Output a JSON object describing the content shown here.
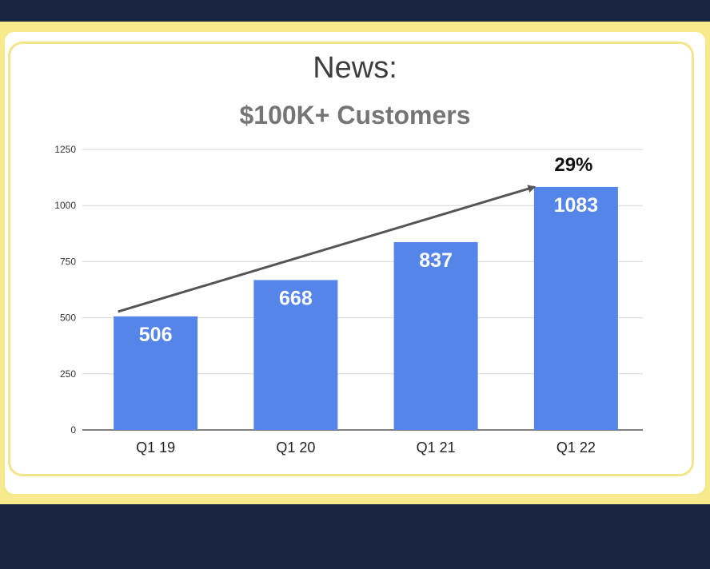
{
  "header": {
    "news_label": "News:"
  },
  "chart_data": {
    "type": "bar",
    "title": "$100K+ Customers",
    "categories": [
      "Q1 19",
      "Q1 20",
      "Q1 21",
      "Q1 22"
    ],
    "values": [
      506,
      668,
      837,
      1083
    ],
    "data_labels": [
      "506",
      "668",
      "837",
      "1083"
    ],
    "yticks": [
      0,
      250,
      500,
      750,
      1000,
      1250
    ],
    "ylim": [
      0,
      1250
    ],
    "grid": true,
    "annotation": {
      "text": "29%",
      "arrow_from": "Q1 19",
      "arrow_to": "Q1 22"
    },
    "colors": {
      "bar": "#5585e8",
      "grid": "#d6d6d6",
      "axis": "#555555",
      "arrow": "#555555"
    }
  }
}
